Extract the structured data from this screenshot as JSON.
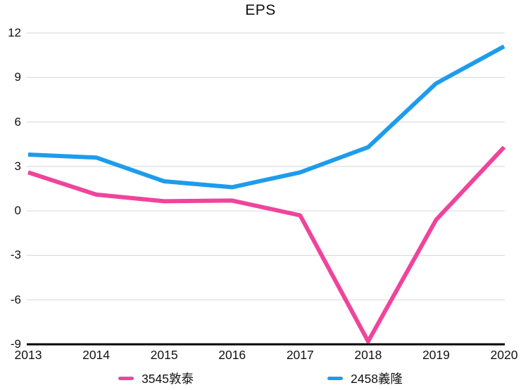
{
  "chart_data": {
    "type": "line",
    "title": "EPS",
    "x": [
      "2013",
      "2014",
      "2015",
      "2016",
      "2017",
      "2018",
      "2019",
      "2020"
    ],
    "series": [
      {
        "name": "3545敦泰",
        "color": "#F0449B",
        "values": [
          2.6,
          1.1,
          0.65,
          0.7,
          -0.3,
          -8.8,
          -0.6,
          4.3
        ]
      },
      {
        "name": "2458義隆",
        "color": "#1E9CEC",
        "values": [
          3.8,
          3.6,
          2.0,
          1.6,
          2.6,
          4.3,
          8.6,
          11.1
        ]
      }
    ],
    "ylim": [
      -9,
      12
    ],
    "yticks": [
      12,
      9,
      6,
      3,
      0,
      -3,
      -6,
      -9
    ],
    "xlabel": "",
    "ylabel": "",
    "grid": true,
    "legend_position": "bottom"
  },
  "colors": {
    "grid": "#D6D6D6",
    "axis": "#000000",
    "text": "#111111",
    "background": "#FFFFFF"
  }
}
